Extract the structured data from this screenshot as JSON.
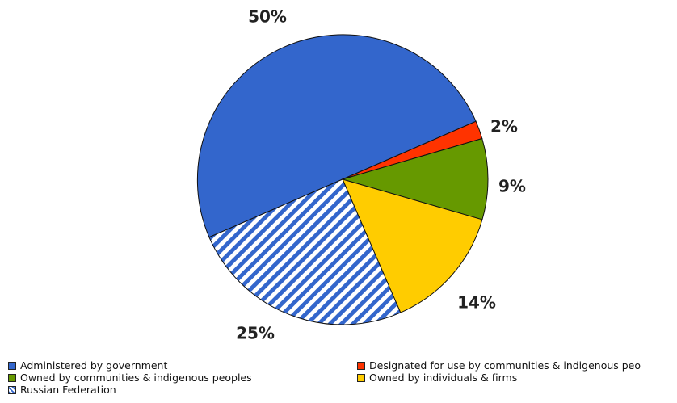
{
  "chart_data": {
    "type": "pie",
    "title": "",
    "slices": [
      {
        "label": "Administered by government",
        "value": 50,
        "display": "50%",
        "color": "#3366cc",
        "pattern": "solid"
      },
      {
        "label": "Designated for use by communities & indigenous peo",
        "value": 2,
        "display": "2%",
        "color": "#ff3300",
        "pattern": "solid"
      },
      {
        "label": "Owned by communities & indigenous peoples",
        "value": 9,
        "display": "9%",
        "color": "#669900",
        "pattern": "solid"
      },
      {
        "label": "Owned by individuals & firms",
        "value": 14,
        "display": "14%",
        "color": "#ffcc00",
        "pattern": "solid"
      },
      {
        "label": "Russian Federation",
        "value": 25,
        "display": "25%",
        "color": "#3366cc",
        "pattern": "diagonal-stripes"
      }
    ],
    "legend_position": "bottom"
  }
}
